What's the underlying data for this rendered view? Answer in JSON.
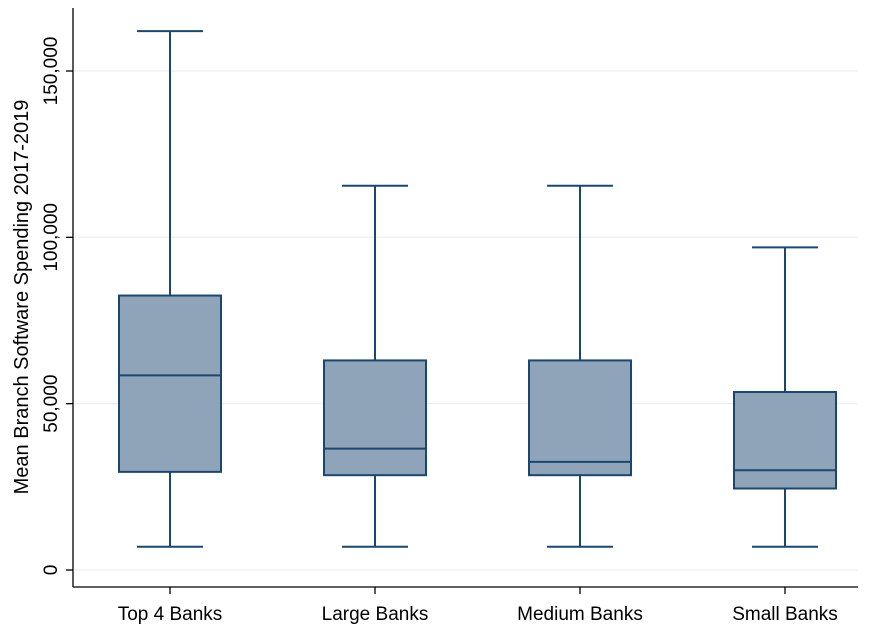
{
  "chart_data": {
    "type": "boxplot",
    "ylabel": "Mean Branch Software Spending 2017-2019",
    "ylim": [
      0,
      165000
    ],
    "yticks": [
      0,
      50000,
      100000,
      150000
    ],
    "ytick_labels": [
      "0",
      "50,000",
      "100,000",
      "150,000"
    ],
    "grid": true,
    "box_color": "#8fa4b9",
    "line_color": "#1a476f",
    "categories": [
      {
        "label": "Top 4 Banks",
        "whisker_low": 7000,
        "q1": 29500,
        "median": 58500,
        "q3": 82500,
        "whisker_high": 162000
      },
      {
        "label": "Large Banks",
        "whisker_low": 7000,
        "q1": 28500,
        "median": 36500,
        "q3": 63000,
        "whisker_high": 115500
      },
      {
        "label": "Medium Banks",
        "whisker_low": 7000,
        "q1": 28500,
        "median": 32500,
        "q3": 63000,
        "whisker_high": 115500
      },
      {
        "label": "Small Banks",
        "whisker_low": 7000,
        "q1": 24500,
        "median": 30000,
        "q3": 53500,
        "whisker_high": 97000
      }
    ]
  }
}
